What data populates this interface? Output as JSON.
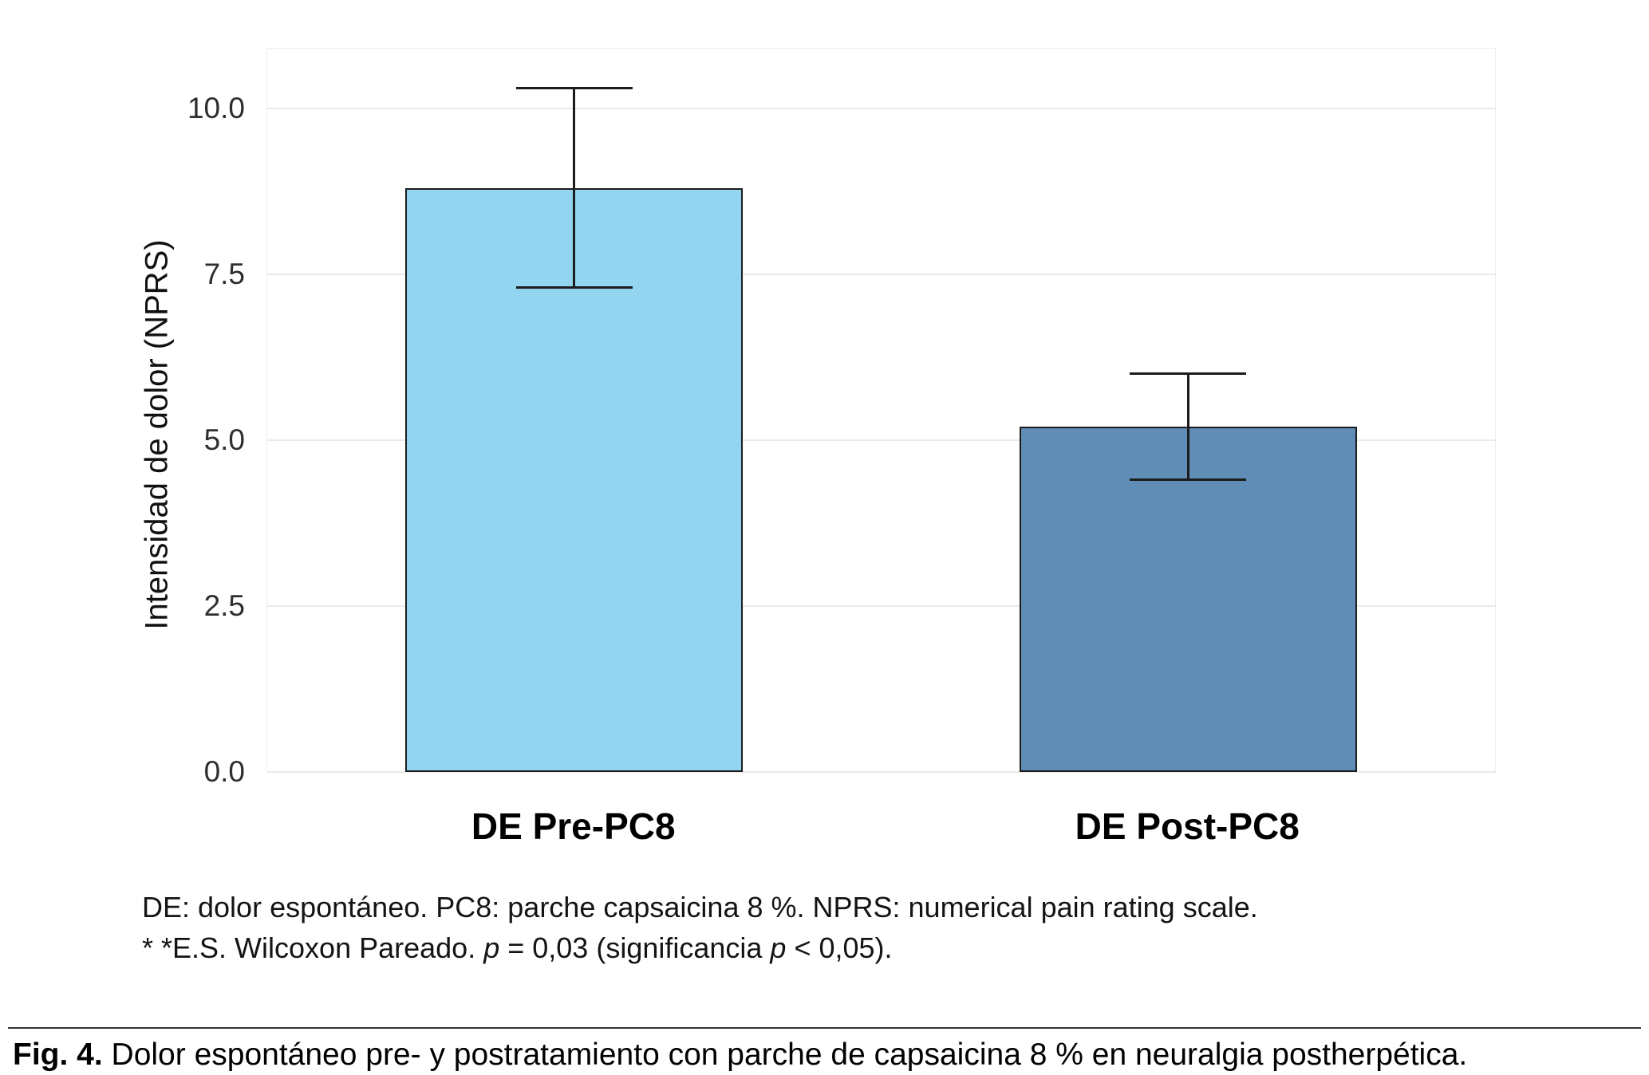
{
  "figure": {
    "caption_label": "Fig. 4.",
    "caption_text": "Dolor espontáneo pre- y postratamiento con parche de capsaicina 8 % en neuralgia postherpética."
  },
  "footnote": {
    "line1": "DE: dolor espontáneo. PC8: parche capsaicina 8 %. NPRS: numerical pain rating scale.",
    "line2": {
      "prefix": "* *E.S. Wilcoxon Pareado. ",
      "p1": "p",
      "mid": " = 0,03 (significancia ",
      "p2": "p",
      "suffix": " < 0,05)."
    }
  },
  "chart_data": {
    "type": "bar",
    "title": "",
    "xlabel": "",
    "ylabel": "Intensidad de dolor (NPRS)",
    "categories": [
      "DE Pre-PC8",
      "DE Post-PC8"
    ],
    "values": [
      8.8,
      5.2
    ],
    "error_bars": [
      {
        "lower": 7.3,
        "upper": 10.3
      },
      {
        "lower": 4.4,
        "upper": 6.0
      }
    ],
    "ylim": [
      0,
      10.9
    ],
    "yticks": [
      0,
      2.5,
      5,
      7.5,
      10
    ],
    "ytick_labels": [
      "0.0",
      "2.5",
      "5.0",
      "7.5",
      "10.0"
    ],
    "grid": "horizontal-major",
    "legend": "none",
    "bar_colors": [
      "#93D4F1",
      "#5F8DB5"
    ],
    "bar_border_color": "#1c1c1c",
    "error_bar_color": "#1c1c1c"
  }
}
